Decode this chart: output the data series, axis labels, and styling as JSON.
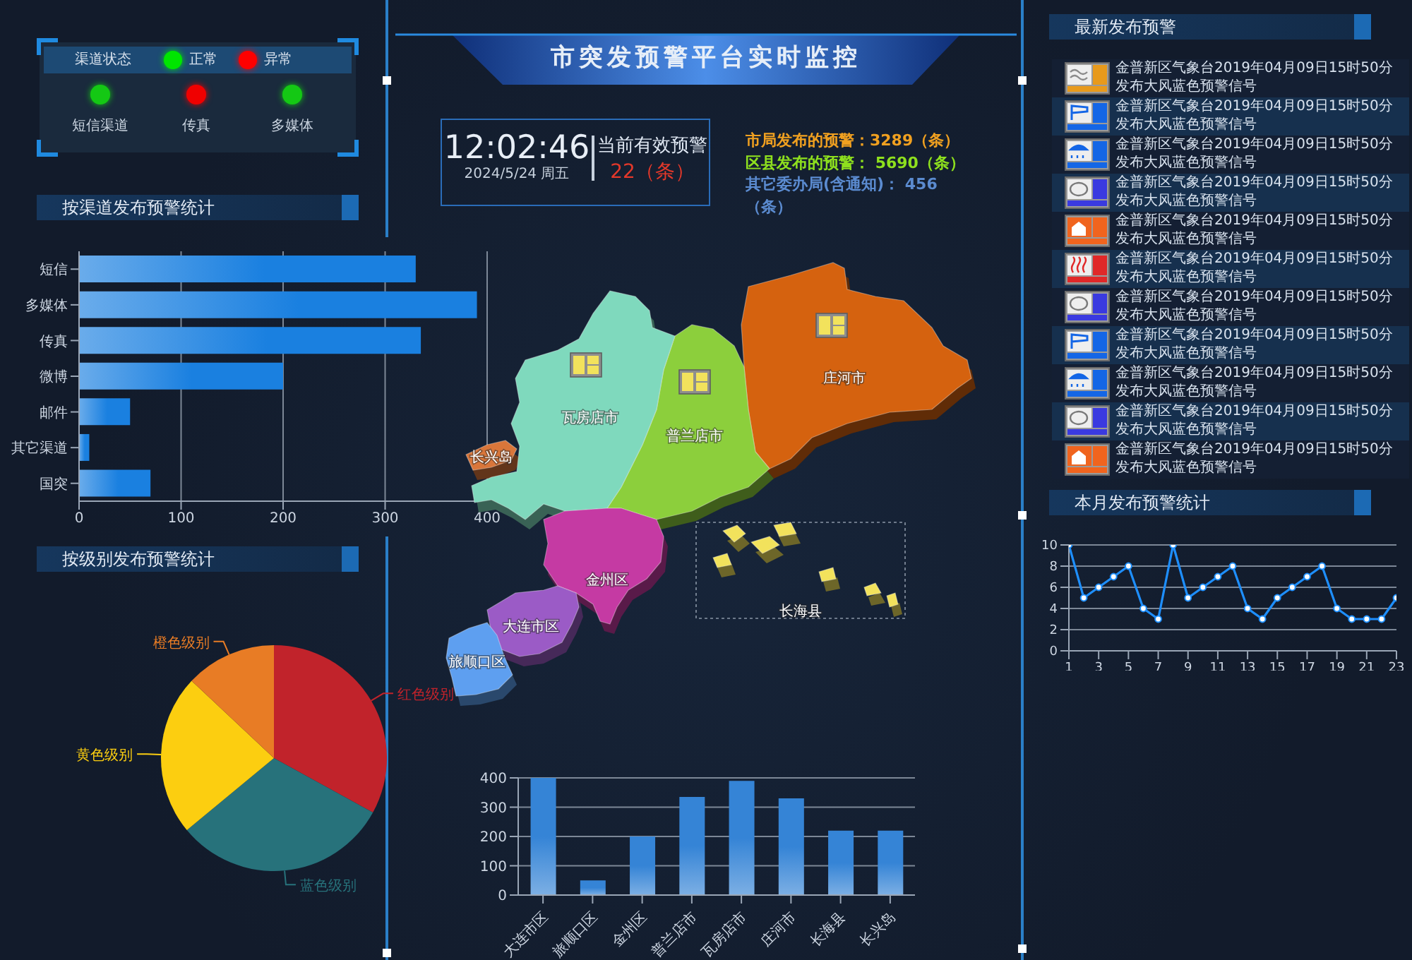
{
  "chart_data": [
    {
      "type": "other",
      "title": "渠道状态",
      "annotations": [
        "正常",
        "异常",
        "短信渠道",
        "传真",
        "多媒体"
      ]
    },
    {
      "type": "bar",
      "title": "按渠道发布预警统计",
      "orientation": "horizontal",
      "categories": [
        "短信",
        "多媒体",
        "传真",
        "微博",
        "邮件",
        "其它渠道",
        "国突"
      ],
      "values": [
        330,
        390,
        335,
        200,
        50,
        10,
        70
      ],
      "color": "#1a80e0",
      "xlim": [
        0,
        400
      ],
      "xticks": [
        0,
        100,
        200,
        300,
        400
      ],
      "grid": "x"
    },
    {
      "type": "pie",
      "title": "按级别发布预警统计",
      "categories": [
        "红色级别",
        "蓝色级别",
        "黄色级别",
        "橙色级别"
      ],
      "values": [
        33,
        31,
        23,
        13
      ],
      "colors": [
        "#c1232b",
        "#27727b",
        "#fcce10",
        "#e87c25"
      ]
    },
    {
      "type": "other",
      "title": "市突发预警平台实时监控",
      "annotations": [
        "12:02:46",
        "2024/5/24  周五",
        "当前有效预警",
        "22（条）",
        "市局发布的预警：3289（条）",
        "区县发布的预警： 5690（条）",
        "其它委办局(含通知)： 456（条）"
      ],
      "colors": [
        "#e8eef6",
        "#c8d2de",
        "#dfe7f2",
        "#e2382a",
        "#f0a020",
        "#8ee01e",
        "#5b8bd0"
      ]
    },
    {
      "type": "other",
      "categories": [
        "长兴岛",
        "瓦房店市",
        "普兰店市",
        "庄河市",
        "金州区",
        "长海县",
        "大连市区",
        "旅顺口区"
      ],
      "colors": [
        "#d9763a",
        "#7fd9bd",
        "#8ccf3c",
        "#d5620f",
        "#c53aa3",
        "#f2e25c",
        "#9b5bc6",
        "#5e9ff0"
      ]
    },
    {
      "type": "bar",
      "categories": [
        "大连市区",
        "旅顺口区",
        "金州区",
        "普兰店市",
        "瓦房店市",
        "庄河市",
        "长海县",
        "长兴岛"
      ],
      "values": [
        400,
        50,
        200,
        335,
        390,
        330,
        220,
        220
      ],
      "color": "#3584d6",
      "ylim": [
        0,
        400
      ],
      "yticks": [
        0,
        100,
        200,
        300,
        400
      ],
      "grid": "y"
    },
    {
      "type": "other",
      "title": "最新发布预警",
      "annotations": [
        "金普新区气象台2019年04月09日15时50分发布大风蓝色预警信号",
        "金普新区气象台2019年04月09日15时50分发布大风蓝色预警信号",
        "金普新区气象台2019年04月09日15时50分发布大风蓝色预警信号",
        "金普新区气象台2019年04月09日15时50分发布大风蓝色预警信号",
        "金普新区气象台2019年04月09日15时50分发布大风蓝色预警信号",
        "金普新区气象台2019年04月09日15时50分发布大风蓝色预警信号",
        "金普新区气象台2019年04月09日15时50分发布大风蓝色预警信号",
        "金普新区气象台2019年04月09日15时50分发布大风蓝色预警信号",
        "金普新区气象台2019年04月09日15时50分发布大风蓝色预警信号",
        "金普新区气象台2019年04月09日15时50分发布大风蓝色预警信号",
        "金普新区气象台2019年04月09日15时50分发布大风蓝色预警信号"
      ]
    },
    {
      "type": "line",
      "title": "本月发布预警统计",
      "x": [
        1,
        2,
        3,
        4,
        5,
        6,
        7,
        8,
        9,
        10,
        11,
        12,
        13,
        14,
        15,
        16,
        17,
        18,
        19,
        20,
        21,
        22,
        23
      ],
      "values": [
        10,
        5,
        6,
        7,
        8,
        4,
        3,
        10,
        5,
        6,
        7,
        8,
        4,
        3,
        5,
        6,
        7,
        8,
        4,
        3,
        3,
        3,
        5
      ],
      "color": "#1e8fff",
      "xlim": [
        1,
        23
      ],
      "xticks": [
        1,
        3,
        5,
        7,
        9,
        11,
        13,
        15,
        17,
        19,
        21,
        23
      ],
      "ylim": [
        0,
        10
      ],
      "yticks": [
        0,
        2,
        4,
        6,
        8,
        10
      ],
      "grid": "y",
      "marker": "circle"
    }
  ]
}
